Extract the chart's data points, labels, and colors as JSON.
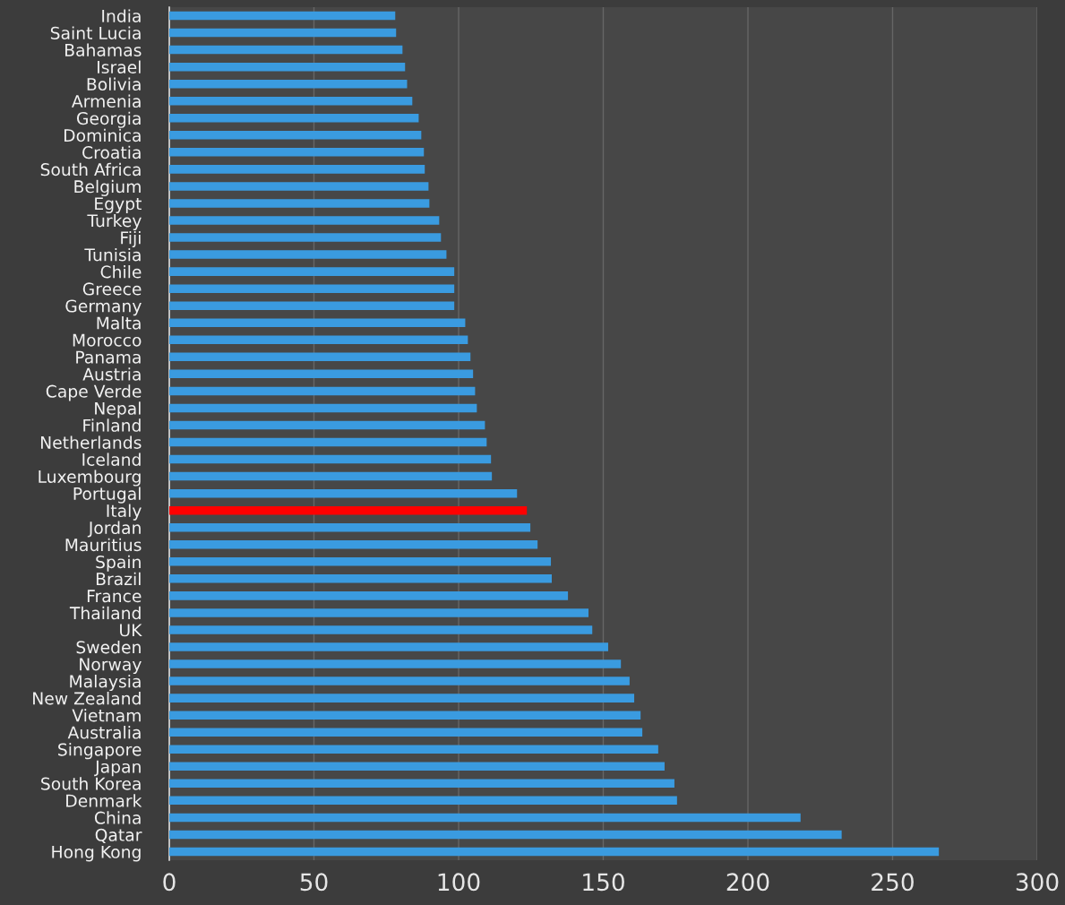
{
  "chart_data": {
    "type": "bar",
    "orientation": "horizontal",
    "categories": [
      "India",
      "Saint Lucia",
      "Bahamas",
      "Israel",
      "Bolivia",
      "Armenia",
      "Georgia",
      "Dominica",
      "Croatia",
      "South Africa",
      "Belgium",
      "Egypt",
      "Turkey",
      "Fiji",
      "Tunisia",
      "Chile",
      "Greece",
      "Germany",
      "Malta",
      "Morocco",
      "Panama",
      "Austria",
      "Cape Verde",
      "Nepal",
      "Finland",
      "Netherlands",
      "Iceland",
      "Luxembourg",
      "Portugal",
      "Italy",
      "Jordan",
      "Mauritius",
      "Spain",
      "Brazil",
      "France",
      "Thailand",
      "UK",
      "Sweden",
      "Norway",
      "Malaysia",
      "New Zealand",
      "Vietnam",
      "Australia",
      "Singapore",
      "Japan",
      "South Korea",
      "Denmark",
      "China",
      "Qatar",
      "Hong Kong"
    ],
    "values": [
      78.1,
      78.4,
      80.6,
      81.5,
      82.2,
      84.0,
      86.2,
      87.1,
      88.0,
      88.3,
      89.6,
      89.9,
      93.3,
      93.9,
      95.8,
      98.5,
      98.5,
      98.5,
      102.3,
      103.2,
      104.1,
      105.0,
      105.7,
      106.3,
      109.1,
      109.7,
      111.2,
      111.5,
      120.2,
      123.6,
      124.8,
      127.3,
      131.9,
      132.2,
      137.8,
      144.9,
      146.2,
      151.7,
      156.1,
      159.1,
      160.7,
      162.9,
      163.5,
      169.0,
      171.2,
      174.6,
      175.5,
      218.2,
      232.4,
      266.0
    ],
    "colors": [
      "#3a9be0",
      "#3a9be0",
      "#3a9be0",
      "#3a9be0",
      "#3a9be0",
      "#3a9be0",
      "#3a9be0",
      "#3a9be0",
      "#3a9be0",
      "#3a9be0",
      "#3a9be0",
      "#3a9be0",
      "#3a9be0",
      "#3a9be0",
      "#3a9be0",
      "#3a9be0",
      "#3a9be0",
      "#3a9be0",
      "#3a9be0",
      "#3a9be0",
      "#3a9be0",
      "#3a9be0",
      "#3a9be0",
      "#3a9be0",
      "#3a9be0",
      "#3a9be0",
      "#3a9be0",
      "#3a9be0",
      "#3a9be0",
      "#ff0000",
      "#3a9be0",
      "#3a9be0",
      "#3a9be0",
      "#3a9be0",
      "#3a9be0",
      "#3a9be0",
      "#3a9be0",
      "#3a9be0",
      "#3a9be0",
      "#3a9be0",
      "#3a9be0",
      "#3a9be0",
      "#3a9be0",
      "#3a9be0",
      "#3a9be0",
      "#3a9be0",
      "#3a9be0",
      "#3a9be0",
      "#3a9be0",
      "#3a9be0"
    ],
    "xlim": [
      0,
      300
    ],
    "xticks": [
      0,
      50,
      100,
      150,
      200,
      250,
      300
    ],
    "grid": "x",
    "legend": false
  }
}
